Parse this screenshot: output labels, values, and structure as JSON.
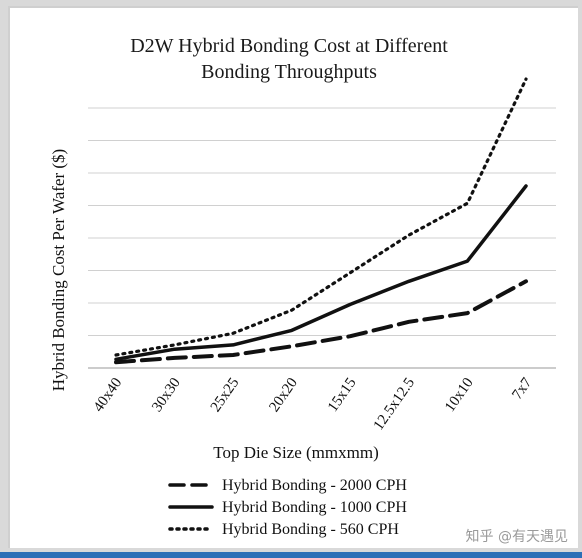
{
  "chart_data": {
    "type": "line",
    "title": [
      "D2W Hybrid Bonding Cost at Different",
      "Bonding Throughputs"
    ],
    "xlabel": "Top Die Size (mmxmm)",
    "ylabel": "Hybrid Bonding Cost Per Wafer ($)",
    "categories": [
      "40x40",
      "30x30",
      "25x25",
      "20x20",
      "15x15",
      "12.5x12.5",
      "10x10",
      "7x7"
    ],
    "ylim": [
      0,
      9
    ],
    "grid": true,
    "legend_position": "bottom",
    "series": [
      {
        "name": "Hybrid Bonding - 2000 CPH",
        "style": "dashed",
        "color": "#111111",
        "values": [
          0.2,
          0.35,
          0.45,
          0.75,
          1.1,
          1.6,
          1.9,
          3.0
        ]
      },
      {
        "name": "Hybrid Bonding - 1000 CPH",
        "style": "solid",
        "color": "#111111",
        "values": [
          0.3,
          0.65,
          0.8,
          1.3,
          2.2,
          3.0,
          3.7,
          6.3
        ]
      },
      {
        "name": "Hybrid Bonding - 560 CPH",
        "style": "dotted",
        "color": "#111111",
        "values": [
          0.45,
          0.8,
          1.2,
          2.0,
          3.3,
          4.6,
          5.7,
          10.0
        ]
      }
    ]
  },
  "watermark": "知乎 @有天遇见"
}
